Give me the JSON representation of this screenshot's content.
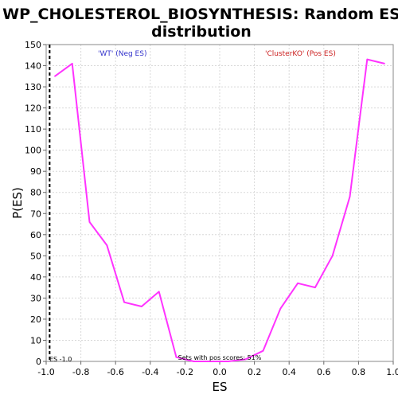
{
  "chart_data": {
    "type": "line",
    "title": "WP_CHOLESTEROL_BIOSYNTHESIS: Random ES distribution",
    "title_lines": [
      "WP_CHOLESTEROL_BIOSYNTHESIS: Random ES",
      "distribution"
    ],
    "xlabel": "ES",
    "ylabel": "P(ES)",
    "xlim": [
      -1.0,
      1.0
    ],
    "ylim": [
      0,
      150
    ],
    "x_ticks": [
      "-1.0",
      "-0.8",
      "-0.6",
      "-0.4",
      "-0.2",
      "0.0",
      "0.2",
      "0.4",
      "0.6",
      "0.8",
      "1.0"
    ],
    "y_ticks": [
      "0",
      "10",
      "20",
      "30",
      "40",
      "50",
      "60",
      "70",
      "80",
      "90",
      "100",
      "110",
      "120",
      "130",
      "140",
      "150"
    ],
    "grid": true,
    "series": [
      {
        "color": "#ff33ff",
        "x": [
          -0.95,
          -0.85,
          -0.75,
          -0.65,
          -0.55,
          -0.45,
          -0.35,
          -0.25,
          -0.15,
          -0.05,
          0.05,
          0.15,
          0.25,
          0.35,
          0.45,
          0.55,
          0.65,
          0.75,
          0.85,
          0.95
        ],
        "y": [
          135,
          141,
          66,
          55,
          28,
          26,
          33,
          2,
          0,
          0,
          0,
          1,
          5,
          25,
          37,
          35,
          50,
          78,
          143,
          141
        ]
      }
    ],
    "annotations": {
      "neg_label": "'WT' (Neg ES)",
      "neg_color": "#3333cc",
      "pos_label": "'ClusterKO' (Pos ES)",
      "pos_color": "#cc2222",
      "es_line_label": "ES -1.0",
      "es_line_x": -0.98,
      "pos_scores_label": "Sets with pos scores: 51%"
    }
  }
}
